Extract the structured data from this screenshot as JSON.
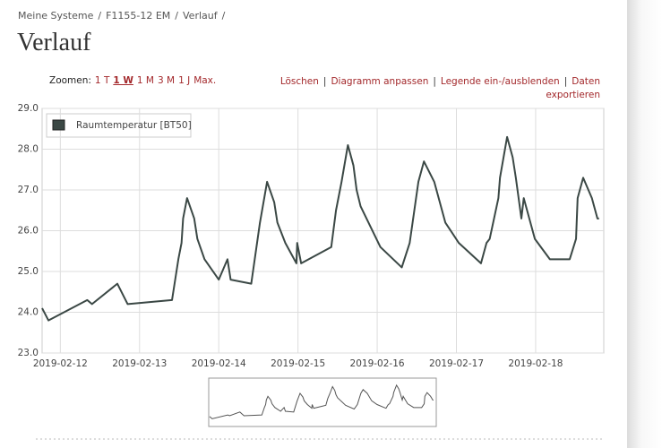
{
  "breadcrumb": [
    "Meine Systeme",
    "F1155-12 EM",
    "Verlauf"
  ],
  "breadcrumb_separator": "/",
  "title": "Verlauf",
  "zoom": {
    "label": "Zoomen:",
    "options": [
      "1 T",
      "1 W",
      "1 M",
      "3 M",
      "1 J",
      "Max."
    ]
  },
  "actions": [
    "Löschen",
    "Diagramm anpassen",
    "Legende ein-/ausblenden",
    "Daten exportieren"
  ],
  "action_separator": "|",
  "chart_data": {
    "type": "line",
    "x": [
      -0.23,
      -0.15,
      0.34,
      0.4,
      0.72,
      0.85,
      1.41,
      1.45,
      1.49,
      1.53,
      1.55,
      1.6,
      1.69,
      1.73,
      1.82,
      2.0,
      2.11,
      2.15,
      2.41,
      2.52,
      2.61,
      2.7,
      2.74,
      2.84,
      2.98,
      2.99,
      3.04,
      3.42,
      3.48,
      3.55,
      3.63,
      3.7,
      3.74,
      3.79,
      4.04,
      4.31,
      4.41,
      4.52,
      4.59,
      4.72,
      4.86,
      5.03,
      5.31,
      5.38,
      5.42,
      5.53,
      5.55,
      5.64,
      5.71,
      5.75,
      5.82,
      5.85,
      5.92,
      5.99,
      6.18,
      6.43,
      6.51,
      6.53,
      6.6,
      6.71,
      6.78,
      6.8
    ],
    "series": [
      {
        "name": "Raumtemperatur [BT50]",
        "color": "#3b4845",
        "values": [
          24.1,
          23.8,
          24.3,
          24.2,
          24.7,
          24.2,
          24.3,
          24.8,
          25.3,
          25.7,
          26.3,
          26.8,
          26.3,
          25.8,
          25.3,
          24.8,
          25.3,
          24.8,
          24.7,
          26.2,
          27.2,
          26.7,
          26.2,
          25.7,
          25.2,
          25.7,
          25.2,
          25.6,
          26.5,
          27.2,
          28.1,
          27.6,
          27.0,
          26.6,
          25.6,
          25.1,
          25.7,
          27.2,
          27.7,
          27.2,
          26.2,
          25.7,
          25.2,
          25.7,
          25.8,
          26.8,
          27.3,
          28.3,
          27.8,
          27.3,
          26.3,
          26.8,
          26.3,
          25.8,
          25.3,
          25.3,
          25.8,
          26.8,
          27.3,
          26.8,
          26.3,
          26.3
        ]
      }
    ],
    "xlim": [
      -0.23,
      6.86
    ],
    "xticks": [
      {
        "value": 0,
        "label": "2019-02-12"
      },
      {
        "value": 1,
        "label": "2019-02-13"
      },
      {
        "value": 2,
        "label": "2019-02-14"
      },
      {
        "value": 3,
        "label": "2019-02-15"
      },
      {
        "value": 4,
        "label": "2019-02-16"
      },
      {
        "value": 5,
        "label": "2019-02-17"
      },
      {
        "value": 6,
        "label": "2019-02-18"
      }
    ],
    "ylim": [
      23,
      29
    ],
    "yticks": [
      {
        "value": 23,
        "label": "23.0"
      },
      {
        "value": 24,
        "label": "24.0"
      },
      {
        "value": 25,
        "label": "25.0"
      },
      {
        "value": 26,
        "label": "26.0"
      },
      {
        "value": 27,
        "label": "27.0"
      },
      {
        "value": 28,
        "label": "28.0"
      },
      {
        "value": 29,
        "label": "29.0"
      }
    ],
    "grid": true,
    "legend": "top-left"
  }
}
